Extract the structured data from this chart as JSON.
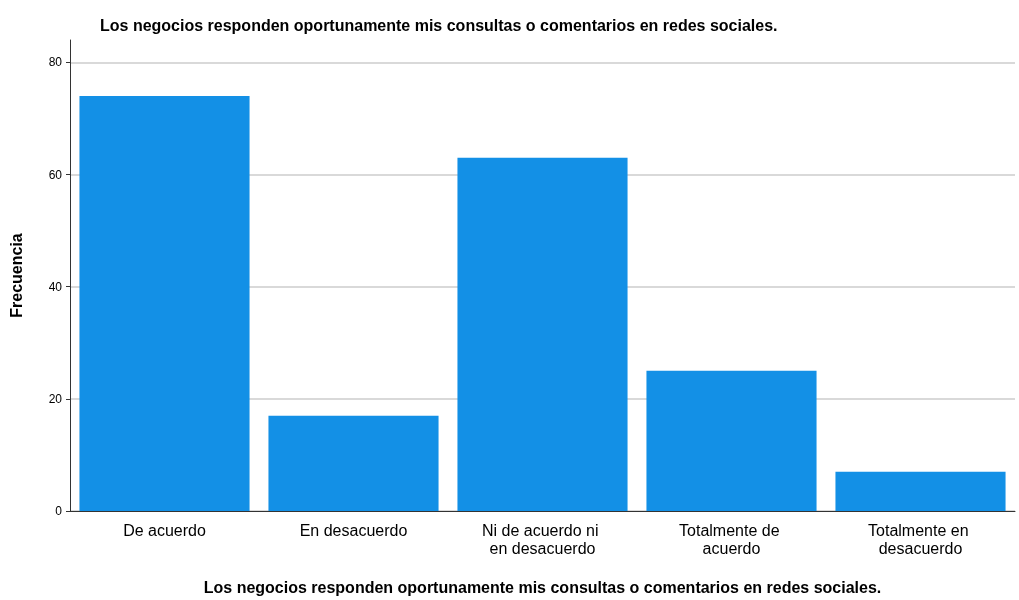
{
  "chart_data": {
    "type": "bar",
    "title": "Los negocios responden oportunamente mis consultas o comentarios en redes sociales.",
    "xlabel": "Los negocios responden oportunamente mis consultas o comentarios en redes sociales.",
    "ylabel": "Frecuencia",
    "categories": [
      "De acuerdo",
      "En desacuerdo",
      "Ni de acuerdo ni en desacuerdo",
      "Totalmente de acuerdo",
      "Totalmente en desacuerdo"
    ],
    "values": [
      74,
      17,
      63,
      25,
      7
    ],
    "color": "#1390e6",
    "ylim": [
      0,
      84
    ],
    "yticks": [
      0,
      20,
      40,
      60,
      80
    ],
    "grid": "y"
  }
}
